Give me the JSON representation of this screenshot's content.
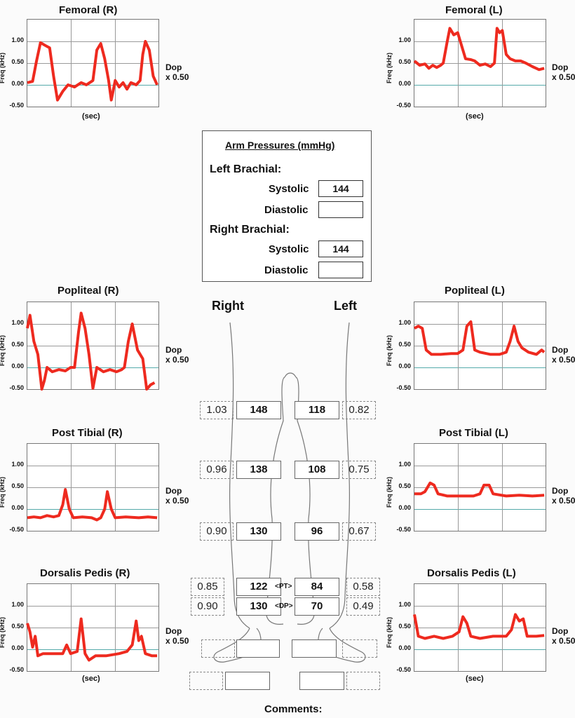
{
  "panels": [
    {
      "id": "femoral-r",
      "title": "Femoral  (R)",
      "y_label": "Freq (kHz)",
      "x_label": "(sec)",
      "dop": "Dop",
      "scale": "x 0.50",
      "ticks": [
        "1.00",
        "0.50",
        "0.00",
        "-0.50"
      ],
      "wave": [
        [
          0,
          0.05
        ],
        [
          0.04,
          0.08
        ],
        [
          0.07,
          0.55
        ],
        [
          0.1,
          0.97
        ],
        [
          0.14,
          0.9
        ],
        [
          0.17,
          0.85
        ],
        [
          0.2,
          0.2
        ],
        [
          0.23,
          -0.35
        ],
        [
          0.27,
          -0.15
        ],
        [
          0.31,
          0.0
        ],
        [
          0.36,
          -0.05
        ],
        [
          0.41,
          0.05
        ],
        [
          0.45,
          0.0
        ],
        [
          0.5,
          0.1
        ],
        [
          0.53,
          0.8
        ],
        [
          0.56,
          0.95
        ],
        [
          0.59,
          0.6
        ],
        [
          0.62,
          0.1
        ],
        [
          0.64,
          -0.35
        ],
        [
          0.67,
          0.1
        ],
        [
          0.7,
          -0.05
        ],
        [
          0.73,
          0.05
        ],
        [
          0.76,
          -0.1
        ],
        [
          0.79,
          0.05
        ],
        [
          0.83,
          0.0
        ],
        [
          0.86,
          0.1
        ],
        [
          0.88,
          0.7
        ],
        [
          0.9,
          1.0
        ],
        [
          0.93,
          0.8
        ],
        [
          0.96,
          0.2
        ],
        [
          0.99,
          0.0
        ]
      ]
    },
    {
      "id": "femoral-l",
      "title": "Femoral (L)",
      "y_label": "Freq (kHz)",
      "x_label": "(sec)",
      "dop": "Dop",
      "scale": "x 0.50",
      "ticks": [
        "1.00",
        "0.50",
        "0.00",
        "-0.50"
      ],
      "wave": [
        [
          0,
          0.55
        ],
        [
          0.04,
          0.45
        ],
        [
          0.08,
          0.48
        ],
        [
          0.11,
          0.38
        ],
        [
          0.14,
          0.45
        ],
        [
          0.17,
          0.4
        ],
        [
          0.2,
          0.45
        ],
        [
          0.22,
          0.5
        ],
        [
          0.25,
          1.0
        ],
        [
          0.27,
          1.3
        ],
        [
          0.3,
          1.15
        ],
        [
          0.33,
          1.2
        ],
        [
          0.36,
          0.9
        ],
        [
          0.39,
          0.6
        ],
        [
          0.43,
          0.58
        ],
        [
          0.46,
          0.55
        ],
        [
          0.5,
          0.45
        ],
        [
          0.54,
          0.48
        ],
        [
          0.58,
          0.42
        ],
        [
          0.61,
          0.5
        ],
        [
          0.63,
          1.3
        ],
        [
          0.65,
          1.2
        ],
        [
          0.67,
          1.25
        ],
        [
          0.7,
          0.7
        ],
        [
          0.73,
          0.6
        ],
        [
          0.77,
          0.55
        ],
        [
          0.81,
          0.55
        ],
        [
          0.85,
          0.5
        ],
        [
          0.9,
          0.42
        ],
        [
          0.95,
          0.35
        ],
        [
          0.99,
          0.38
        ]
      ]
    },
    {
      "id": "popliteal-r",
      "title": "Popliteal (R)",
      "y_label": "Freq (kHz)",
      "x_label": "",
      "dop": "Dop",
      "scale": "x 0.50",
      "ticks": [
        "1.00",
        "0.50",
        "0.00",
        "-0.50"
      ],
      "wave": [
        [
          0,
          0.9
        ],
        [
          0.02,
          1.2
        ],
        [
          0.05,
          0.6
        ],
        [
          0.08,
          0.3
        ],
        [
          0.11,
          -0.5
        ],
        [
          0.13,
          -0.3
        ],
        [
          0.15,
          0.0
        ],
        [
          0.19,
          -0.1
        ],
        [
          0.24,
          -0.05
        ],
        [
          0.29,
          -0.08
        ],
        [
          0.33,
          0.0
        ],
        [
          0.36,
          0.0
        ],
        [
          0.39,
          0.8
        ],
        [
          0.41,
          1.25
        ],
        [
          0.44,
          0.9
        ],
        [
          0.47,
          0.3
        ],
        [
          0.5,
          -0.48
        ],
        [
          0.53,
          0.0
        ],
        [
          0.58,
          -0.1
        ],
        [
          0.63,
          -0.05
        ],
        [
          0.68,
          -0.1
        ],
        [
          0.72,
          -0.05
        ],
        [
          0.74,
          0.0
        ],
        [
          0.77,
          0.6
        ],
        [
          0.8,
          1.0
        ],
        [
          0.84,
          0.4
        ],
        [
          0.88,
          0.2
        ],
        [
          0.91,
          -0.5
        ],
        [
          0.94,
          -0.4
        ],
        [
          0.97,
          -0.35
        ]
      ]
    },
    {
      "id": "popliteal-l",
      "title": "Popliteal (L)",
      "y_label": "Freq (kHz)",
      "x_label": "",
      "dop": "Dop",
      "scale": "x 0.50",
      "ticks": [
        "1.00",
        "0.50",
        "0.00",
        "-0.50"
      ],
      "wave": [
        [
          0,
          0.9
        ],
        [
          0.03,
          0.95
        ],
        [
          0.06,
          0.9
        ],
        [
          0.09,
          0.4
        ],
        [
          0.13,
          0.3
        ],
        [
          0.2,
          0.3
        ],
        [
          0.28,
          0.32
        ],
        [
          0.33,
          0.32
        ],
        [
          0.37,
          0.4
        ],
        [
          0.4,
          0.95
        ],
        [
          0.43,
          1.05
        ],
        [
          0.46,
          0.4
        ],
        [
          0.5,
          0.35
        ],
        [
          0.58,
          0.3
        ],
        [
          0.65,
          0.3
        ],
        [
          0.7,
          0.35
        ],
        [
          0.73,
          0.6
        ],
        [
          0.76,
          0.95
        ],
        [
          0.79,
          0.6
        ],
        [
          0.82,
          0.45
        ],
        [
          0.87,
          0.35
        ],
        [
          0.93,
          0.3
        ],
        [
          0.97,
          0.4
        ],
        [
          0.99,
          0.35
        ]
      ]
    },
    {
      "id": "post-tibial-r",
      "title": "Post Tibial (R)",
      "y_label": "Freq (kHz)",
      "x_label": "",
      "dop": "Dop",
      "scale": "x 0.50",
      "ticks": [
        "1.00",
        "0.50",
        "0.00",
        "-0.50"
      ],
      "wave": [
        [
          0,
          -0.2
        ],
        [
          0.05,
          -0.18
        ],
        [
          0.1,
          -0.2
        ],
        [
          0.15,
          -0.15
        ],
        [
          0.2,
          -0.18
        ],
        [
          0.24,
          -0.15
        ],
        [
          0.27,
          0.1
        ],
        [
          0.29,
          0.45
        ],
        [
          0.32,
          0.0
        ],
        [
          0.35,
          -0.2
        ],
        [
          0.42,
          -0.18
        ],
        [
          0.49,
          -0.2
        ],
        [
          0.53,
          -0.25
        ],
        [
          0.56,
          -0.2
        ],
        [
          0.59,
          0.0
        ],
        [
          0.61,
          0.4
        ],
        [
          0.64,
          0.0
        ],
        [
          0.67,
          -0.2
        ],
        [
          0.75,
          -0.18
        ],
        [
          0.85,
          -0.2
        ],
        [
          0.92,
          -0.18
        ],
        [
          0.99,
          -0.2
        ]
      ]
    },
    {
      "id": "post-tibial-l",
      "title": "Post Tibial (L)",
      "y_label": "Freq (kHz)",
      "x_label": "",
      "dop": "Dop",
      "scale": "x 0.50",
      "ticks": [
        "1.00",
        "0.50",
        "0.00",
        "-0.50"
      ],
      "wave": [
        [
          0,
          0.35
        ],
        [
          0.05,
          0.35
        ],
        [
          0.08,
          0.4
        ],
        [
          0.12,
          0.6
        ],
        [
          0.15,
          0.55
        ],
        [
          0.18,
          0.35
        ],
        [
          0.25,
          0.3
        ],
        [
          0.35,
          0.3
        ],
        [
          0.45,
          0.3
        ],
        [
          0.5,
          0.35
        ],
        [
          0.53,
          0.55
        ],
        [
          0.57,
          0.55
        ],
        [
          0.6,
          0.35
        ],
        [
          0.7,
          0.3
        ],
        [
          0.8,
          0.32
        ],
        [
          0.9,
          0.3
        ],
        [
          0.99,
          0.32
        ]
      ]
    },
    {
      "id": "dorsalis-pedis-r",
      "title": "Dorsalis Pedis (R)",
      "y_label": "Freq (kHz)",
      "x_label": "(sec)",
      "dop": "Dop",
      "scale": "x 0.50",
      "ticks": [
        "1.00",
        "0.50",
        "0.00",
        "-0.50"
      ],
      "wave": [
        [
          0,
          0.6
        ],
        [
          0.02,
          0.4
        ],
        [
          0.04,
          0.05
        ],
        [
          0.06,
          0.3
        ],
        [
          0.08,
          -0.15
        ],
        [
          0.12,
          -0.1
        ],
        [
          0.2,
          -0.1
        ],
        [
          0.27,
          -0.1
        ],
        [
          0.3,
          0.1
        ],
        [
          0.33,
          -0.1
        ],
        [
          0.38,
          -0.05
        ],
        [
          0.41,
          0.7
        ],
        [
          0.44,
          -0.1
        ],
        [
          0.47,
          -0.25
        ],
        [
          0.52,
          -0.15
        ],
        [
          0.6,
          -0.15
        ],
        [
          0.7,
          -0.1
        ],
        [
          0.76,
          -0.05
        ],
        [
          0.8,
          0.1
        ],
        [
          0.83,
          0.65
        ],
        [
          0.85,
          0.2
        ],
        [
          0.87,
          0.3
        ],
        [
          0.9,
          -0.1
        ],
        [
          0.95,
          -0.15
        ],
        [
          0.99,
          -0.15
        ]
      ]
    },
    {
      "id": "dorsalis-pedis-l",
      "title": "Dorsalis Pedis (L)",
      "y_label": "Freq (kHz)",
      "x_label": "(sec)",
      "dop": "Dop",
      "scale": "x 0.50",
      "ticks": [
        "1.00",
        "0.50",
        "0.00",
        "-0.50"
      ],
      "wave": [
        [
          0,
          0.8
        ],
        [
          0.03,
          0.3
        ],
        [
          0.08,
          0.25
        ],
        [
          0.15,
          0.3
        ],
        [
          0.22,
          0.25
        ],
        [
          0.29,
          0.3
        ],
        [
          0.34,
          0.4
        ],
        [
          0.37,
          0.75
        ],
        [
          0.4,
          0.6
        ],
        [
          0.43,
          0.3
        ],
        [
          0.5,
          0.25
        ],
        [
          0.6,
          0.3
        ],
        [
          0.7,
          0.3
        ],
        [
          0.74,
          0.45
        ],
        [
          0.77,
          0.8
        ],
        [
          0.8,
          0.65
        ],
        [
          0.83,
          0.7
        ],
        [
          0.86,
          0.3
        ],
        [
          0.93,
          0.3
        ],
        [
          0.99,
          0.32
        ]
      ]
    }
  ],
  "arm_pressures": {
    "title": "Arm Pressures (mmHg)",
    "left_label": "Left Brachial:",
    "right_label": "Right Brachial:",
    "systolic_label": "Systolic",
    "diastolic_label": "Diastolic",
    "left_systolic": "144",
    "left_diastolic": "",
    "right_systolic": "144",
    "right_diastolic": ""
  },
  "legs": {
    "right_label": "Right",
    "left_label": "Left",
    "rows": [
      {
        "r_index": "1.03",
        "r_pressure": "148",
        "l_pressure": "118",
        "l_index": "0.82",
        "mid": ""
      },
      {
        "r_index": "0.96",
        "r_pressure": "138",
        "l_pressure": "108",
        "l_index": "0.75",
        "mid": ""
      },
      {
        "r_index": "0.90",
        "r_pressure": "130",
        "l_pressure": "96",
        "l_index": "0.67",
        "mid": ""
      },
      {
        "r_index": "0.85",
        "r_pressure": "122",
        "l_pressure": "84",
        "l_index": "0.58",
        "mid": "<PT>"
      },
      {
        "r_index": "0.90",
        "r_pressure": "130",
        "l_pressure": "70",
        "l_index": "0.49",
        "mid": "<DP>"
      }
    ]
  },
  "comments_label": "Comments:",
  "colors": {
    "trace": "#ee2a1f",
    "grid": "#9a9a9a"
  }
}
